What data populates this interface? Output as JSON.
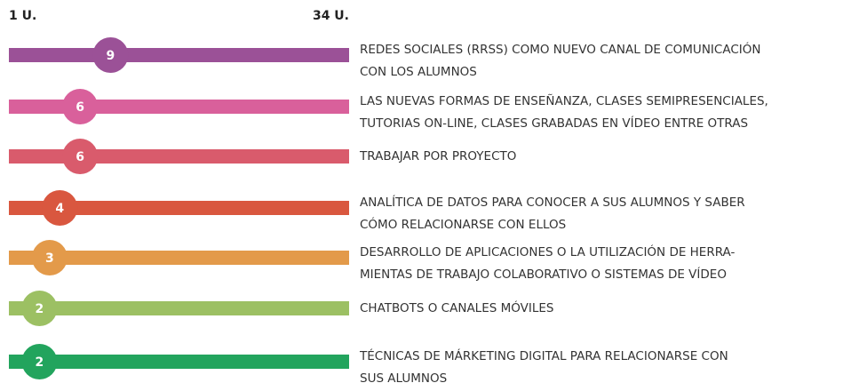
{
  "chart_data": {
    "type": "dot-bar",
    "xlim": [
      1,
      34
    ],
    "xticks": [
      {
        "value": 1,
        "label": "1 U."
      },
      {
        "value": 34,
        "label": "34 U."
      }
    ],
    "categories": [
      [
        "REDES SOCIALES (RRSS) COMO NUEVO CANAL DE COMUNICACIÓN",
        "CON LOS ALUMNOS"
      ],
      [
        "LAS NUEVAS FORMAS DE ENSEÑANZA, CLASES SEMIPRESENCIALES,",
        "TUTORIAS ON-LINE, CLASES GRABADAS EN VÍDEO ENTRE OTRAS"
      ],
      [
        "TRABAJAR POR PROYECTO"
      ],
      [
        "ANALÍTICA DE DATOS PARA CONOCER A SUS ALUMNOS Y SABER",
        "CÓMO RELACIONARSE CON ELLOS"
      ],
      [
        "DESARROLLO DE APLICACIONES O LA UTILIZACIÓN DE HERRA-",
        "MIENTAS DE TRABAJO COLABORATIVO O SISTEMAS DE VÍDEO"
      ],
      [
        "CHATBOTS O CANALES MÓVILES"
      ],
      [
        "TÉCNICAS DE MÁRKETING DIGITAL PARA RELACIONARSE CON",
        "SUS ALUMNOS"
      ]
    ],
    "values": [
      9,
      6,
      6,
      4,
      3,
      2,
      2
    ],
    "colors": [
      "#9b5197",
      "#d9609b",
      "#d95b6c",
      "#d9573f",
      "#e39a4a",
      "#9cc063",
      "#22a45d"
    ]
  }
}
